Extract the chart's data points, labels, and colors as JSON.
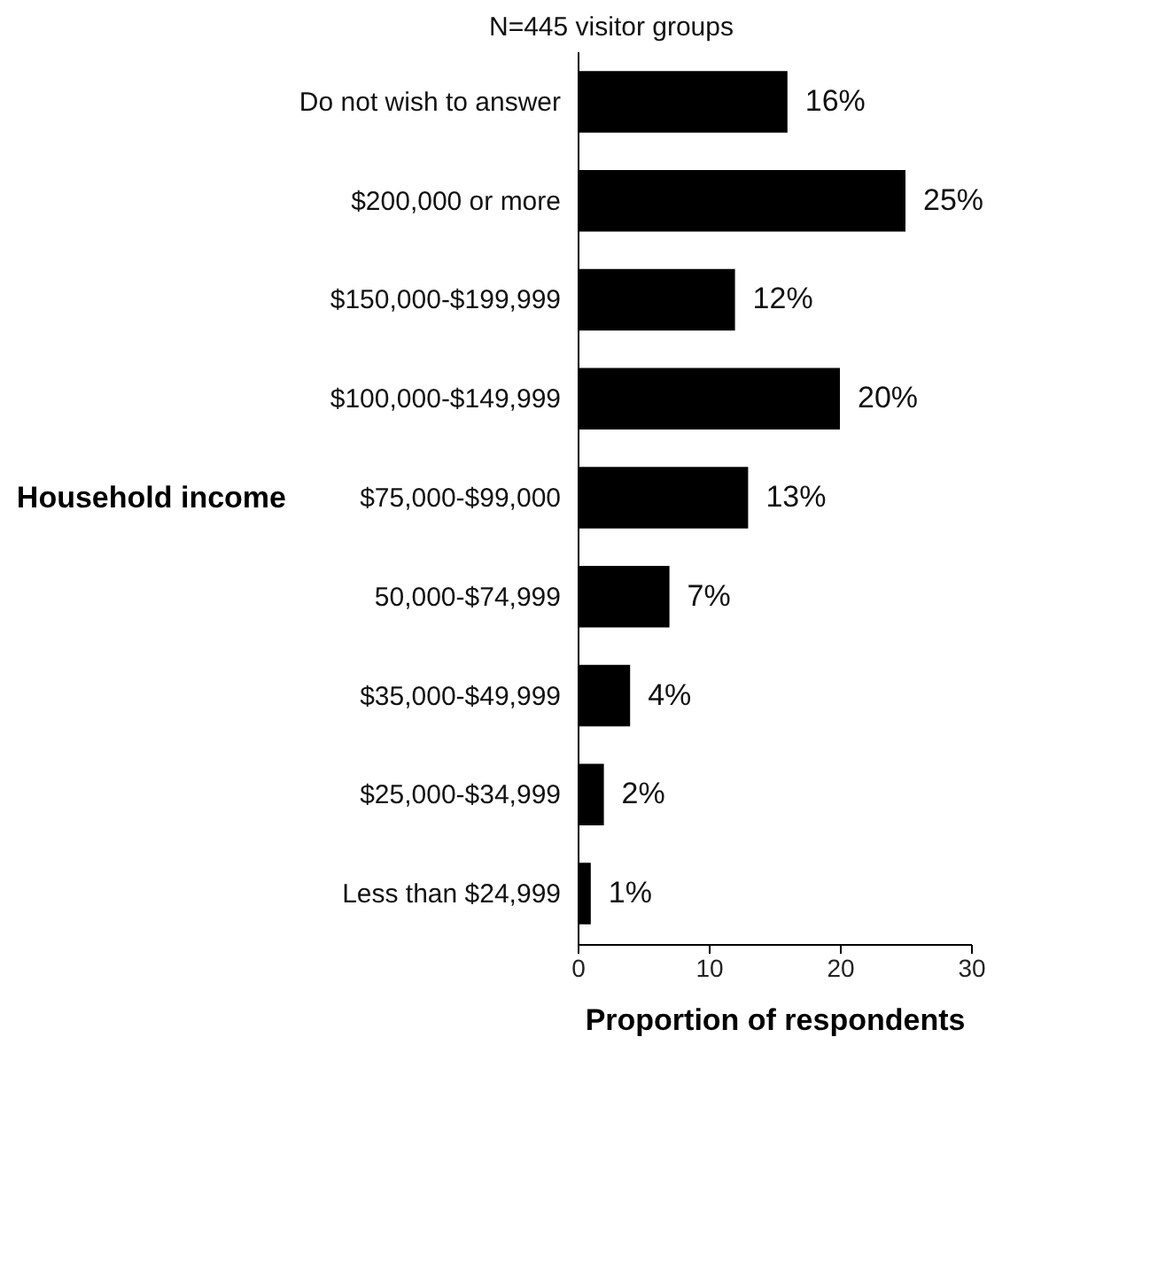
{
  "chart_data": {
    "type": "bar",
    "orientation": "horizontal",
    "title": "N=445 visitor groups",
    "xlabel": "Proportion of respondents",
    "ylabel": "Household income",
    "categories": [
      "Do not wish to answer",
      "$200,000 or more",
      "$150,000-$199,999",
      "$100,000-$149,999",
      "$75,000-$99,000",
      "50,000-$74,999",
      "$35,000-$49,999",
      "$25,000-$34,999",
      "Less than $24,999"
    ],
    "values": [
      16,
      25,
      12,
      20,
      13,
      7,
      4,
      2,
      1
    ],
    "value_labels": [
      "16%",
      "25%",
      "12%",
      "20%",
      "13%",
      "7%",
      "4%",
      "2%",
      "1%"
    ],
    "color": "#000000",
    "xlim": [
      0,
      30
    ],
    "xticks": [
      0,
      10,
      20,
      30
    ]
  }
}
